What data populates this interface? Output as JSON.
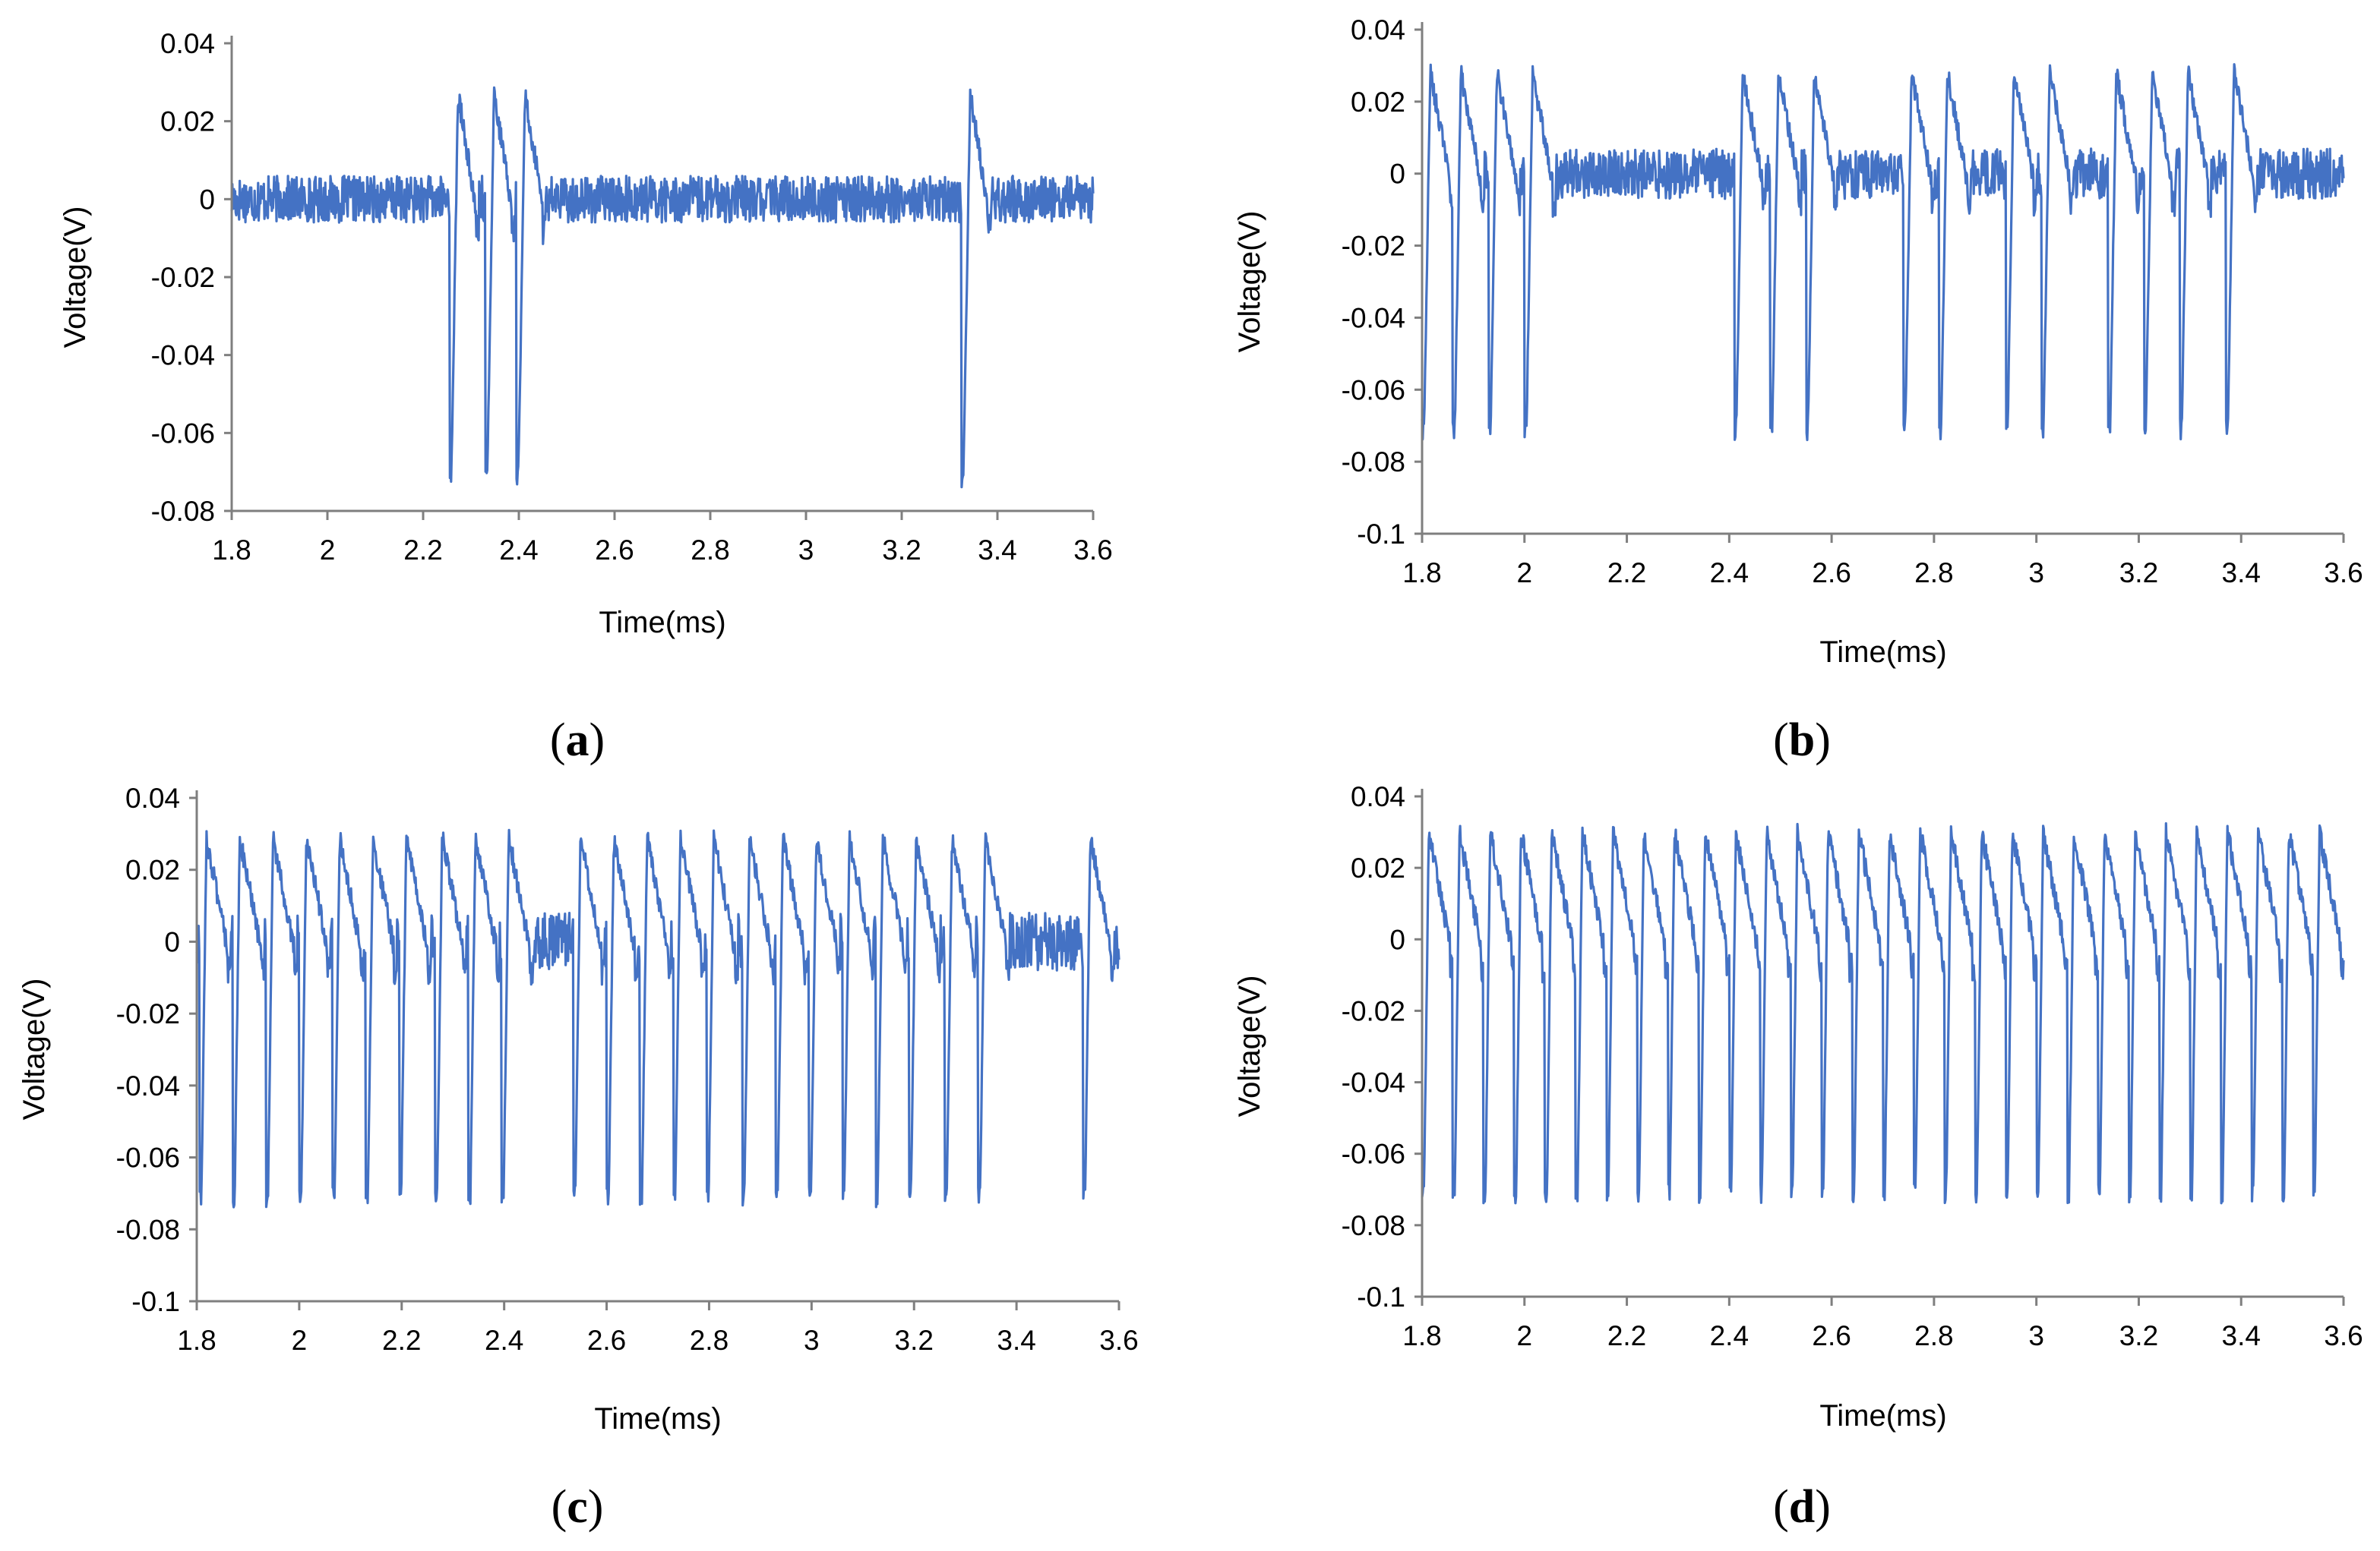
{
  "figure": {
    "line_color": "#4472C4",
    "axis_color": "#7f7f7f"
  },
  "chart_data": [
    {
      "id": "a",
      "type": "line",
      "panel_label": "a",
      "xlabel": "Time(ms)",
      "ylabel": "Voltage(V)",
      "xlim": [
        1.8,
        3.6
      ],
      "ylim": [
        -0.08,
        0.04
      ],
      "xticks": [
        1.8,
        2,
        2.2,
        2.4,
        2.6,
        2.8,
        3,
        3.2,
        3.4,
        3.6
      ],
      "xtick_labels": [
        "1.8",
        "2",
        "2.2",
        "2.4",
        "2.6",
        "2.8",
        "3",
        "3.2",
        "3.4",
        "3.6"
      ],
      "yticks": [
        0.04,
        0.02,
        0,
        -0.02,
        -0.04,
        -0.06,
        -0.08
      ],
      "ytick_labels": [
        "0.04",
        "0.02",
        "0",
        "-0.02",
        "-0.04",
        "-0.06",
        "-0.08"
      ],
      "signal": {
        "t_start": 1.8,
        "t_end": 3.6,
        "spike_times": [
          2.255,
          2.33,
          2.395,
          3.325
        ],
        "rise_duration": 0.018,
        "spike_peak": 0.027,
        "spike_trough": -0.071,
        "noise_amplitude": 0.006
      }
    },
    {
      "id": "b",
      "type": "line",
      "panel_label": "b",
      "xlabel": "Time(ms)",
      "ylabel": "Voltage(V)",
      "xlim": [
        1.8,
        3.6
      ],
      "ylim": [
        -0.1,
        0.04
      ],
      "xticks": [
        1.8,
        2,
        2.2,
        2.4,
        2.6,
        2.8,
        3,
        3.2,
        3.4,
        3.6
      ],
      "xtick_labels": [
        "1.8",
        "2",
        "2.2",
        "2.4",
        "2.6",
        "2.8",
        "3",
        "3.2",
        "3.4",
        "3.6"
      ],
      "yticks": [
        0.04,
        0.02,
        0,
        -0.02,
        -0.04,
        -0.06,
        -0.08,
        -0.1
      ],
      "ytick_labels": [
        "0.04",
        "0.02",
        "0",
        "-0.02",
        "-0.04",
        "-0.06",
        "-0.08",
        "-0.1"
      ],
      "signal": {
        "t_start": 1.8,
        "t_end": 3.6,
        "spike_times": [
          1.8,
          1.86,
          1.93,
          2.0,
          2.41,
          2.48,
          2.55,
          2.74,
          2.81,
          2.94,
          3.01,
          3.14,
          3.21,
          3.28,
          3.37
        ],
        "rise_duration": 0.016,
        "spike_peak": 0.028,
        "spike_trough": -0.071,
        "noise_amplitude": 0.007
      }
    },
    {
      "id": "c",
      "type": "line",
      "panel_label": "c",
      "xlabel": "Time(ms)",
      "ylabel": "Voltage(V)",
      "xlim": [
        1.8,
        3.6
      ],
      "ylim": [
        -0.1,
        0.04
      ],
      "xticks": [
        1.8,
        2,
        2.2,
        2.4,
        2.6,
        2.8,
        3,
        3.2,
        3.4,
        3.6
      ],
      "xtick_labels": [
        "1.8",
        "2",
        "2.2",
        "2.4",
        "2.6",
        "2.8",
        "3",
        "3.2",
        "3.4",
        "3.6"
      ],
      "yticks": [
        0.04,
        0.02,
        0,
        -0.02,
        -0.04,
        -0.06,
        -0.08,
        -0.1
      ],
      "ytick_labels": [
        "0.04",
        "0.02",
        "0",
        "-0.02",
        "-0.04",
        "-0.06",
        "-0.08",
        "-0.1"
      ],
      "signal": {
        "t_start": 1.8,
        "t_end": 3.6,
        "spike_times": [
          1.805,
          1.87,
          1.935,
          2.0,
          2.065,
          2.13,
          2.195,
          2.265,
          2.33,
          2.395,
          2.535,
          2.6,
          2.665,
          2.73,
          2.795,
          2.865,
          2.93,
          2.995,
          3.06,
          3.125,
          3.19,
          3.26,
          3.325,
          3.53
        ],
        "rise_duration": 0.014,
        "spike_peak": 0.029,
        "spike_trough": -0.071,
        "noise_amplitude": 0.008
      }
    },
    {
      "id": "d",
      "type": "line",
      "panel_label": "d",
      "xlabel": "Time(ms)",
      "ylabel": "Voltage(V)",
      "xlim": [
        1.8,
        3.6
      ],
      "ylim": [
        -0.1,
        0.04
      ],
      "xticks": [
        1.8,
        2,
        2.2,
        2.4,
        2.6,
        2.8,
        3,
        3.2,
        3.4,
        3.6
      ],
      "xtick_labels": [
        "1.8",
        "2",
        "2.2",
        "2.4",
        "2.6",
        "2.8",
        "3",
        "3.2",
        "3.4",
        "3.6"
      ],
      "yticks": [
        0.04,
        0.02,
        0,
        -0.02,
        -0.04,
        -0.06,
        -0.08,
        -0.1
      ],
      "ytick_labels": [
        "0.04",
        "0.02",
        "0",
        "-0.02",
        "-0.04",
        "-0.06",
        "-0.08",
        "-0.1"
      ],
      "signal": {
        "t_start": 1.8,
        "t_end": 3.6,
        "spike_times": [
          1.8,
          1.86,
          1.92,
          1.98,
          2.04,
          2.1,
          2.16,
          2.22,
          2.28,
          2.34,
          2.4,
          2.46,
          2.52,
          2.58,
          2.64,
          2.7,
          2.76,
          2.82,
          2.88,
          2.94,
          3.0,
          3.06,
          3.12,
          3.18,
          3.24,
          3.3,
          3.36,
          3.42,
          3.48,
          3.54
        ],
        "rise_duration": 0.013,
        "spike_peak": 0.03,
        "spike_trough": -0.071,
        "noise_amplitude": 0.008
      }
    }
  ]
}
